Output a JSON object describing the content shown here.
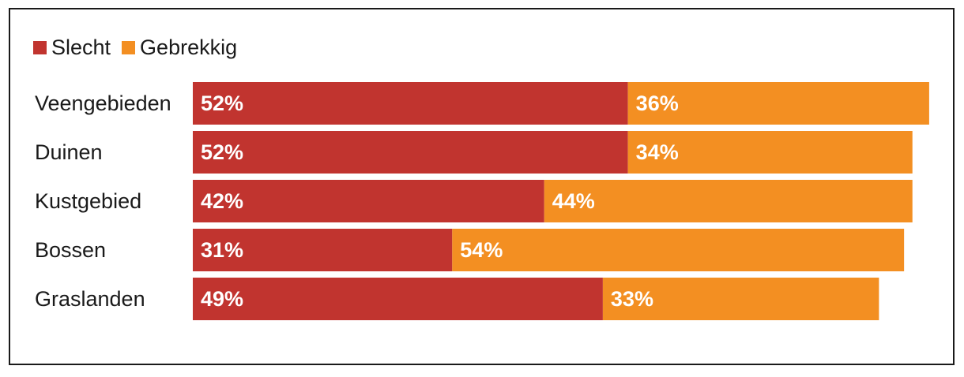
{
  "chart_data": {
    "type": "bar",
    "orientation": "horizontal",
    "stacked": true,
    "categories": [
      "Veengebieden",
      "Duinen",
      "Kustgebied",
      "Bossen",
      "Graslanden"
    ],
    "series": [
      {
        "name": "Slecht",
        "values": [
          52,
          52,
          42,
          31,
          49
        ],
        "labels": [
          "52%",
          "52%",
          "42%",
          "31%",
          "49%"
        ],
        "color": "#c1342f"
      },
      {
        "name": "Gebrekkig",
        "values": [
          36,
          34,
          44,
          54,
          33
        ],
        "labels": [
          "36%",
          "34%",
          "44%",
          "54%",
          "33%"
        ],
        "color": "#f38f22"
      }
    ],
    "xlim": [
      0,
      100
    ],
    "grid": false,
    "legend_position": "top-left"
  }
}
